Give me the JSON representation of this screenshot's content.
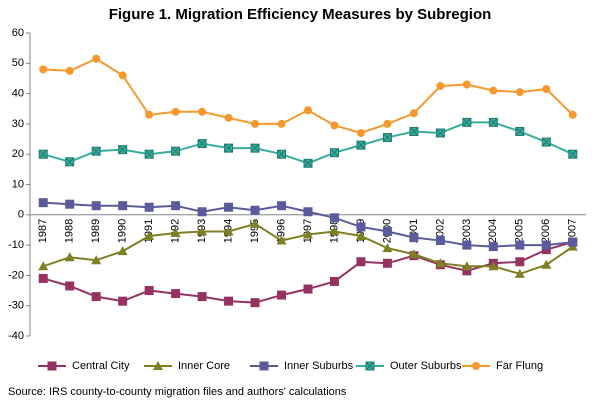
{
  "chart_data": {
    "type": "line",
    "title": "Figure 1. Migration Efficiency Measures by Subregion",
    "source": "Source: IRS county-to-county migration files and authors' calculations",
    "categories": [
      "1987",
      "1988",
      "1989",
      "1990",
      "1991",
      "1992",
      "1993",
      "1994",
      "1995",
      "1996",
      "1997",
      "1998",
      "1999",
      "2000",
      "2001",
      "2002",
      "2003",
      "2004",
      "2005",
      "2006",
      "2007"
    ],
    "ylim": [
      -40,
      60
    ],
    "yticks": [
      -40,
      -30,
      -20,
      -10,
      0,
      10,
      20,
      30,
      40,
      50,
      60
    ],
    "series": [
      {
        "name": "Central City",
        "color": "#953262",
        "marker": "square",
        "values": [
          -21,
          -23.5,
          -27,
          -28.5,
          -25,
          -26,
          -27,
          -28.5,
          -29,
          -26.5,
          -24.5,
          -22,
          -15.5,
          -16,
          -13.5,
          -16.5,
          -18.5,
          -16,
          -15.5,
          -11.5,
          -9
        ]
      },
      {
        "name": "Inner Core",
        "color": "#7f7f24",
        "marker": "triangle",
        "values": [
          -17,
          -14,
          -15,
          -12,
          -7,
          -6,
          -5.5,
          -5.5,
          -3,
          -8.5,
          -6.5,
          -5.5,
          -7,
          -11,
          -13,
          -16,
          -17,
          -17,
          -19.5,
          -16.5,
          -10.5
        ]
      },
      {
        "name": "Inner Suburbs",
        "color": "#5a5a9c",
        "marker": "square",
        "values": [
          4,
          3.5,
          3,
          3,
          2.5,
          3,
          1,
          2.5,
          1.5,
          3,
          1,
          -1,
          -4,
          -5.5,
          -7.5,
          -8.5,
          -10,
          -10.5,
          -10,
          -10,
          -9
        ]
      },
      {
        "name": "Outer Suburbs",
        "color": "#37ad9e",
        "marker": "xsquare",
        "values": [
          20,
          17.5,
          21,
          21.5,
          20,
          21,
          23.5,
          22,
          22,
          20,
          17,
          20.5,
          23,
          25.5,
          27.5,
          27,
          30.5,
          30.5,
          27.5,
          24,
          20
        ]
      },
      {
        "name": "Far Flung",
        "color": "#f7982e",
        "marker": "circle",
        "values": [
          48,
          47.5,
          51.5,
          46,
          33,
          34,
          34,
          32,
          30,
          30,
          34.5,
          29.5,
          27,
          30,
          33.5,
          42.5,
          43,
          41,
          40.5,
          41.5,
          33
        ]
      }
    ]
  }
}
